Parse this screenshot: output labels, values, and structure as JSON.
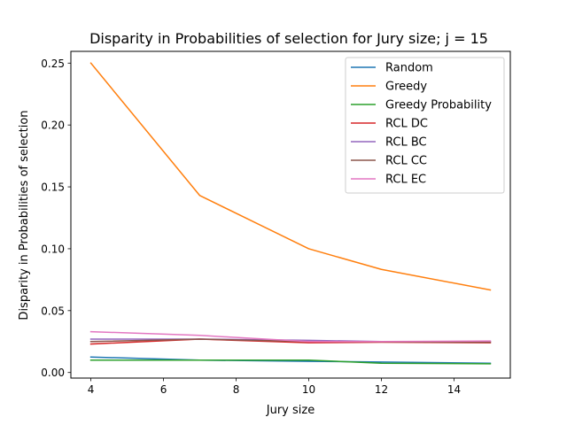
{
  "chart_data": {
    "type": "line",
    "title": "Disparity in Probabilities of selection for Jury size; j = 15",
    "xlabel": "Jury size",
    "ylabel": "Disparity in Probabilities of selection",
    "x": [
      4,
      7,
      10,
      12,
      15
    ],
    "xlim": [
      3.45,
      15.55
    ],
    "ylim": [
      -0.0045,
      0.2595
    ],
    "xticks": [
      4,
      6,
      8,
      10,
      12,
      14
    ],
    "yticks": [
      0.0,
      0.05,
      0.1,
      0.15,
      0.2,
      0.25
    ],
    "ytick_labels": [
      "0.00",
      "0.05",
      "0.10",
      "0.15",
      "0.20",
      "0.25"
    ],
    "grid": false,
    "legend_position": "top-right",
    "series": [
      {
        "name": "Random",
        "color": "#1f77b4",
        "values": [
          0.0125,
          0.01,
          0.009,
          0.0085,
          0.0075
        ]
      },
      {
        "name": "Greedy",
        "color": "#ff7f0e",
        "values": [
          0.25,
          0.143,
          0.1,
          0.0833,
          0.0667
        ]
      },
      {
        "name": "Greedy Probability",
        "color": "#2ca02c",
        "values": [
          0.01,
          0.01,
          0.01,
          0.0075,
          0.007
        ]
      },
      {
        "name": "RCL DC",
        "color": "#d62728",
        "values": [
          0.023,
          0.027,
          0.024,
          0.0245,
          0.024
        ]
      },
      {
        "name": "RCL BC",
        "color": "#9467bd",
        "values": [
          0.027,
          0.027,
          0.026,
          0.025,
          0.025
        ]
      },
      {
        "name": "RCL CC",
        "color": "#8c564b",
        "values": [
          0.025,
          0.027,
          0.025,
          0.0248,
          0.0245
        ]
      },
      {
        "name": "RCL EC",
        "color": "#e377c2",
        "values": [
          0.033,
          0.03,
          0.025,
          0.025,
          0.0255
        ]
      }
    ]
  }
}
